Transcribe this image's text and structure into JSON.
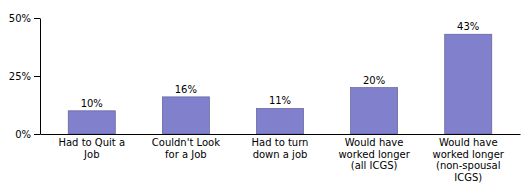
{
  "chart_data": {
    "type": "bar",
    "categories": [
      "Had to Quit a\nJob",
      "Couldn't Look\nfor a Job",
      "Had to turn\ndown a job",
      "Would have\nworked longer\n(all ICGS)",
      "Would have\nworked longer\n(non-spousal\nICGS)"
    ],
    "values": [
      10,
      16,
      11,
      20,
      43
    ],
    "value_labels": [
      "10%",
      "16%",
      "11%",
      "20%",
      "43%"
    ],
    "data_labels": true,
    "color": "#8080cc",
    "ylim": [
      0,
      50
    ],
    "yticks": [
      {
        "value": 0,
        "label": "0%"
      },
      {
        "value": 25,
        "label": "25%"
      },
      {
        "value": 50,
        "label": "50%"
      }
    ],
    "grid": false
  }
}
